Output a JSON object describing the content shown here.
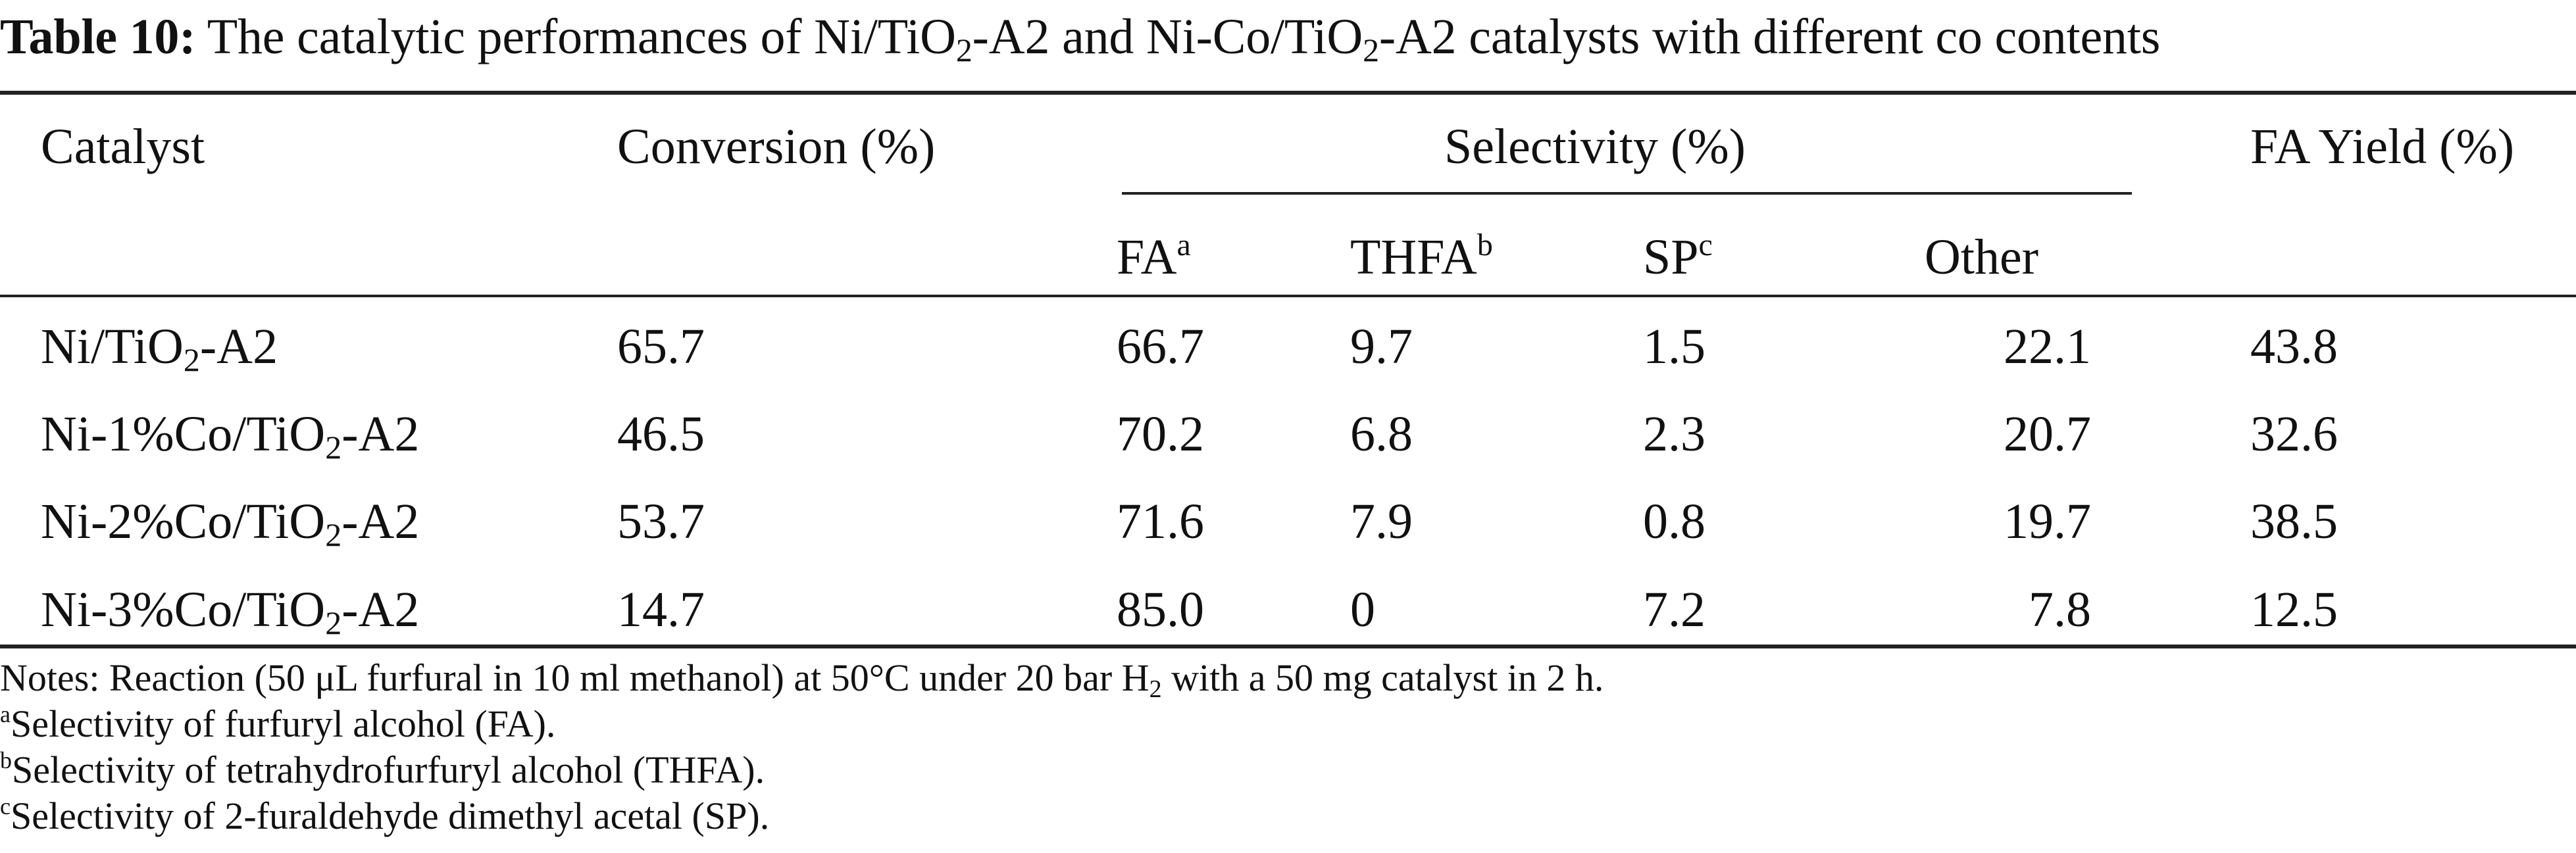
{
  "caption": {
    "label": "Table 10:",
    "text_a": "The catalytic performances of Ni/TiO",
    "sub_a": "2",
    "text_b": "-A2 and Ni-Co/TiO",
    "sub_b": "2",
    "text_c": "-A2 catalysts with different co contents"
  },
  "header": {
    "catalyst": "Catalyst",
    "conversion": "Conversion (%)",
    "selectivity": "Selectivity (%)",
    "fa_yield": "FA Yield (%)",
    "sub": {
      "fa": "FA",
      "fa_mark": "a",
      "thfa": "THFA",
      "thfa_mark": "b",
      "sp": "SP",
      "sp_mark": "c",
      "other": "Other"
    }
  },
  "rows": [
    {
      "cat_pre": "Ni/TiO",
      "cat_sub": "2",
      "cat_post": "-A2",
      "conversion": "65.7",
      "fa": "66.7",
      "thfa": "9.7",
      "sp": "1.5",
      "other": "22.1",
      "yield": "43.8"
    },
    {
      "cat_pre": "Ni-1%Co/TiO",
      "cat_sub": "2",
      "cat_post": "-A2",
      "conversion": "46.5",
      "fa": "70.2",
      "thfa": "6.8",
      "sp": "2.3",
      "other": "20.7",
      "yield": "32.6"
    },
    {
      "cat_pre": "Ni-2%Co/TiO",
      "cat_sub": "2",
      "cat_post": "-A2",
      "conversion": "53.7",
      "fa": "71.6",
      "thfa": "7.9",
      "sp": "0.8",
      "other": "19.7",
      "yield": "38.5"
    },
    {
      "cat_pre": "Ni-3%Co/TiO",
      "cat_sub": "2",
      "cat_post": "-A2",
      "conversion": "14.7",
      "fa": "85.0",
      "thfa": "0",
      "sp": "7.2",
      "other": "7.8",
      "yield": "12.5"
    }
  ],
  "notes": {
    "line1_pre": "Notes: Reaction (50 μL furfural in 10 ml methanol) at 50°C under 20 bar H",
    "line1_sub": "2",
    "line1_post": " with a 50 mg catalyst in 2 h.",
    "a_mark": "a",
    "a_text": "Selectivity of furfuryl alcohol (FA).",
    "b_mark": "b",
    "b_text": "Selectivity of tetrahydrofurfuryl alcohol (THFA).",
    "c_mark": "c",
    "c_text": "Selectivity of 2-furaldehyde dimethyl acetal (SP)."
  }
}
